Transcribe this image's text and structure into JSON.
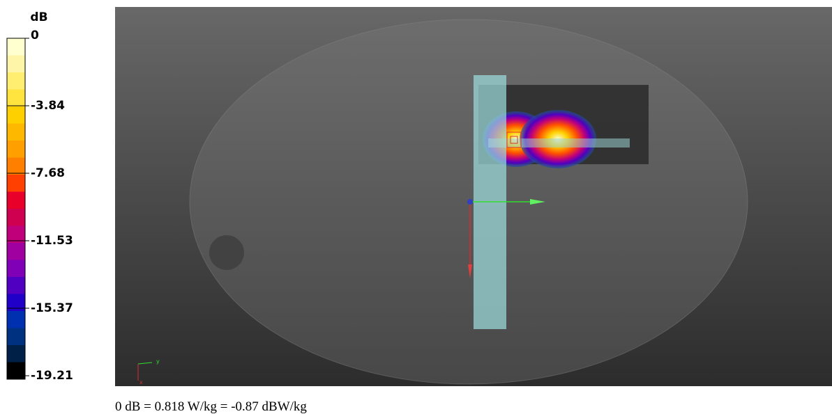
{
  "colorbar": {
    "unit": "dB",
    "labels": [
      "0",
      "-3.84",
      "-7.68",
      "-11.53",
      "-15.37",
      "-19.21"
    ]
  },
  "view": {
    "axis_y": "y",
    "axis_x": "x"
  },
  "caption": "0 dB = 0.818 W/kg = -0.87 dBW/kg"
}
